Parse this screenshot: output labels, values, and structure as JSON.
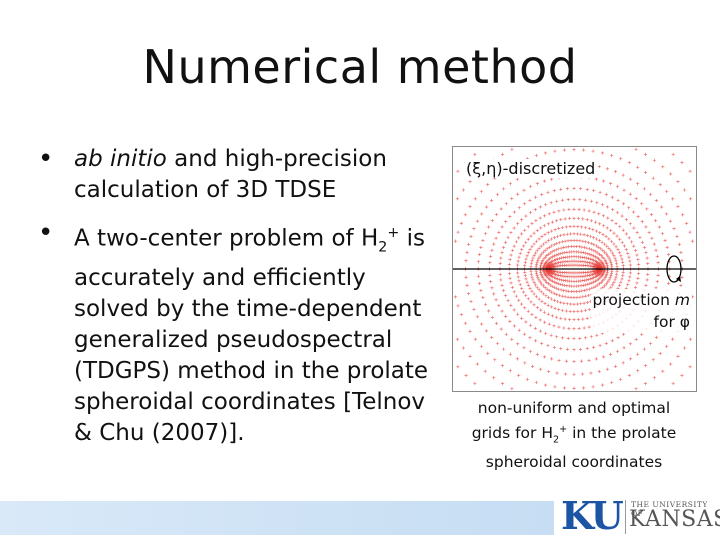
{
  "slide": {
    "title": "Numerical method"
  },
  "bullets": [
    {
      "lead_italic": "ab initio",
      "text_1": " and high-precision calculation of 3D TDSE"
    },
    {
      "text_a": "A two-center problem of H",
      "sub": "2",
      "sup": "+",
      "text_b": " is accurately and efficiently solved by the time-dependent generalized pseudospectral (TDGPS) method in the prolate spheroidal coordinates [Telnov & Chu (2007)]."
    }
  ],
  "figure": {
    "label": "(ξ,η)-discretized",
    "projection_text": "projection ",
    "projection_var": "m",
    "for_text": "for φ",
    "grid_color": "#e53935",
    "axis_color": "#000000"
  },
  "caption": {
    "line1": "non-uniform and optimal",
    "line2a": "grids for H",
    "sub": "2",
    "sup": "+",
    "line2b": " in the prolate",
    "line3": "spheroidal coordinates"
  },
  "logo": {
    "mark": "KU",
    "small": "THE UNIVERSITY OF",
    "big": "KANSAS",
    "color": "#1b55a4"
  }
}
